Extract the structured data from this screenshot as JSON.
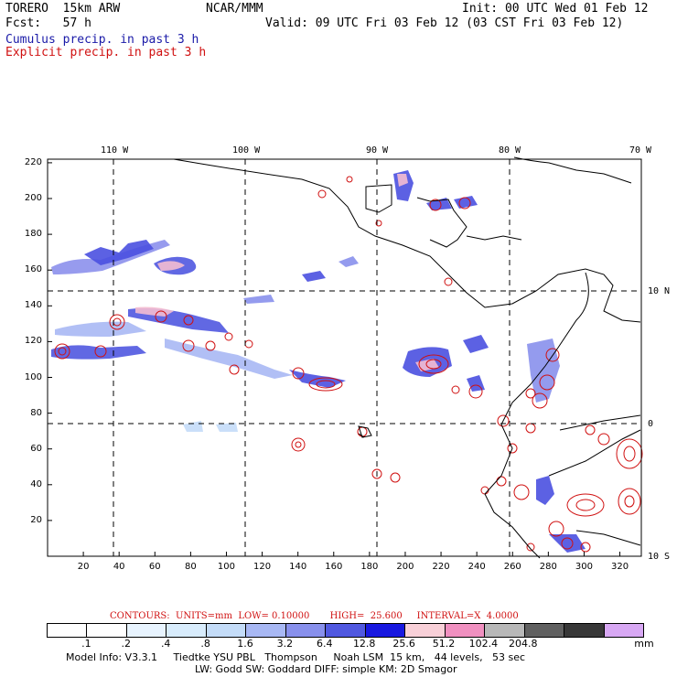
{
  "header": {
    "model": "TORERO  15km ARW",
    "org": "NCAR/MMM",
    "init": "Init: 00 UTC Wed 01 Feb 12",
    "fcst": "Fcst:   57 h",
    "valid": "Valid: 09 UTC Fri 03 Feb 12 (03 CST Fri 03 Feb 12)",
    "field1": "Cumulus precip. in past 3 h",
    "field2": "Explicit precip. in past 3 h"
  },
  "axes": {
    "top_lon_labels": [
      "110 W",
      "100 W",
      "90 W",
      "80 W",
      "70 W"
    ],
    "right_lat_labels": [
      "10 N",
      "0",
      "10 S"
    ],
    "y_ticks": [
      "220",
      "200",
      "180",
      "160",
      "140",
      "120",
      "100",
      "80",
      "60",
      "40",
      "20"
    ],
    "x_ticks": [
      "20",
      "40",
      "60",
      "80",
      "100",
      "120",
      "140",
      "160",
      "180",
      "200",
      "220",
      "240",
      "260",
      "280",
      "300",
      "320"
    ]
  },
  "contours_line": {
    "label": "CONTOURS:  UNITS=mm  LOW= 0.10000       HIGH=  25.600     INTERVAL=X  4.0000",
    "color": "#d01010"
  },
  "colorbar": {
    "colors": [
      "#ffffff",
      "#ffffff",
      "#e8f4ff",
      "#d8ecfc",
      "#c4dcf8",
      "#a8b8f4",
      "#8890ec",
      "#5058e0",
      "#1818e0",
      "#f8d0d8",
      "#f090c0",
      "#b8b8b8",
      "#606060",
      "#383838",
      "#d8a8f4"
    ],
    "labels": [
      ".1",
      ".2",
      ".4",
      ".8",
      "1.6",
      "3.2",
      "6.4",
      "12.8",
      "25.6",
      "51.2",
      "102.4",
      "204.8"
    ],
    "unit": "mm"
  },
  "footer": {
    "line1": "Model Info: V3.3.1     Tiedtke YSU PBL   Thompson     Noah LSM  15 km,   44 levels,   53 sec",
    "line2": "LW: Godd SW: Goddard DIFF: simple KM: 2D Smagor"
  },
  "chart_data": {
    "type": "heatmap",
    "title": "",
    "x_range": [
      0,
      332
    ],
    "y_range": [
      0,
      222
    ],
    "grid": "dashed lon/lat lines",
    "lon_lines": [
      "110 W",
      "100 W",
      "90 W",
      "80 W"
    ],
    "lat_lines": [
      "10 N",
      "0"
    ]
  }
}
